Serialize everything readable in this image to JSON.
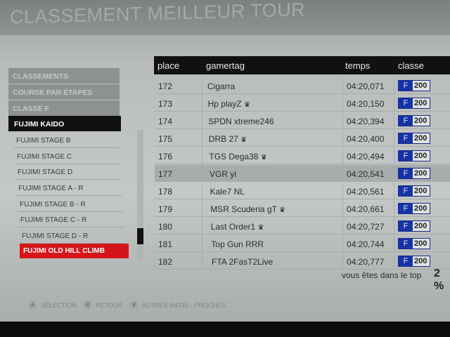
{
  "title": "CLASSEMENT MEILLEUR TOUR",
  "menu": {
    "headers": [
      "CLASSEMENTS",
      "COURSE PAR ÉTAPES",
      "CLASSE F"
    ],
    "selected": "FUJIMI KAIDO",
    "items": [
      "FUJIMI STAGE B",
      "FUJIMI STAGE C",
      "FUJIMI STAGE D",
      "FUJIMI STAGE A - R",
      "FUJIMI STAGE B - R",
      "FUJIMI STAGE C - R",
      "FUJIMI STAGE D - R"
    ],
    "active": "FUJIMI OLD HILL CLIMB"
  },
  "table": {
    "headers": {
      "place": "place",
      "gamertag": "gamertag",
      "temps": "temps",
      "classe": "classe"
    },
    "rows": [
      {
        "place": "172",
        "gamertag": "Cigarra",
        "crown": false,
        "temps": "04:20,071",
        "class": "F",
        "pi": "200"
      },
      {
        "place": "173",
        "gamertag": "Hp playZ",
        "crown": true,
        "temps": "04:20,150",
        "class": "F",
        "pi": "200"
      },
      {
        "place": "174",
        "gamertag": "SPDN xtreme246",
        "crown": false,
        "temps": "04:20,394",
        "class": "F",
        "pi": "200"
      },
      {
        "place": "175",
        "gamertag": "DRB 27",
        "crown": true,
        "temps": "04:20,400",
        "class": "F",
        "pi": "200"
      },
      {
        "place": "176",
        "gamertag": "TGS Dega38",
        "crown": true,
        "temps": "04:20,494",
        "class": "F",
        "pi": "200"
      },
      {
        "place": "177",
        "gamertag": "VGR yi",
        "crown": false,
        "temps": "04:20,541",
        "class": "F",
        "pi": "200",
        "highlighted": true
      },
      {
        "place": "178",
        "gamertag": "Kale7 NL",
        "crown": false,
        "temps": "04:20,561",
        "class": "F",
        "pi": "200"
      },
      {
        "place": "179",
        "gamertag": "MSR Scuderia gT",
        "crown": true,
        "temps": "04:20,661",
        "class": "F",
        "pi": "200"
      },
      {
        "place": "180",
        "gamertag": "Last Order1",
        "crown": true,
        "temps": "04:20,727",
        "class": "F",
        "pi": "200"
      },
      {
        "place": "181",
        "gamertag": "Top Gun RRR",
        "crown": false,
        "temps": "04:20,744",
        "class": "F",
        "pi": "200"
      },
      {
        "place": "182",
        "gamertag": "FTA 2FasT2Live",
        "crown": false,
        "temps": "04:20,777",
        "class": "F",
        "pi": "200"
      }
    ]
  },
  "top": {
    "label": "vous êtes dans le top",
    "value": "2 %"
  },
  "footer": [
    {
      "key": "A",
      "label": "SÉLECTION"
    },
    {
      "key": "B",
      "label": "RETOUR"
    },
    {
      "key": "X",
      "label": "AUTRES INFOS - PROCHES"
    }
  ],
  "colors": {
    "class_badge": "#1633a6",
    "active_item": "#d4161a",
    "header": "#111111"
  }
}
